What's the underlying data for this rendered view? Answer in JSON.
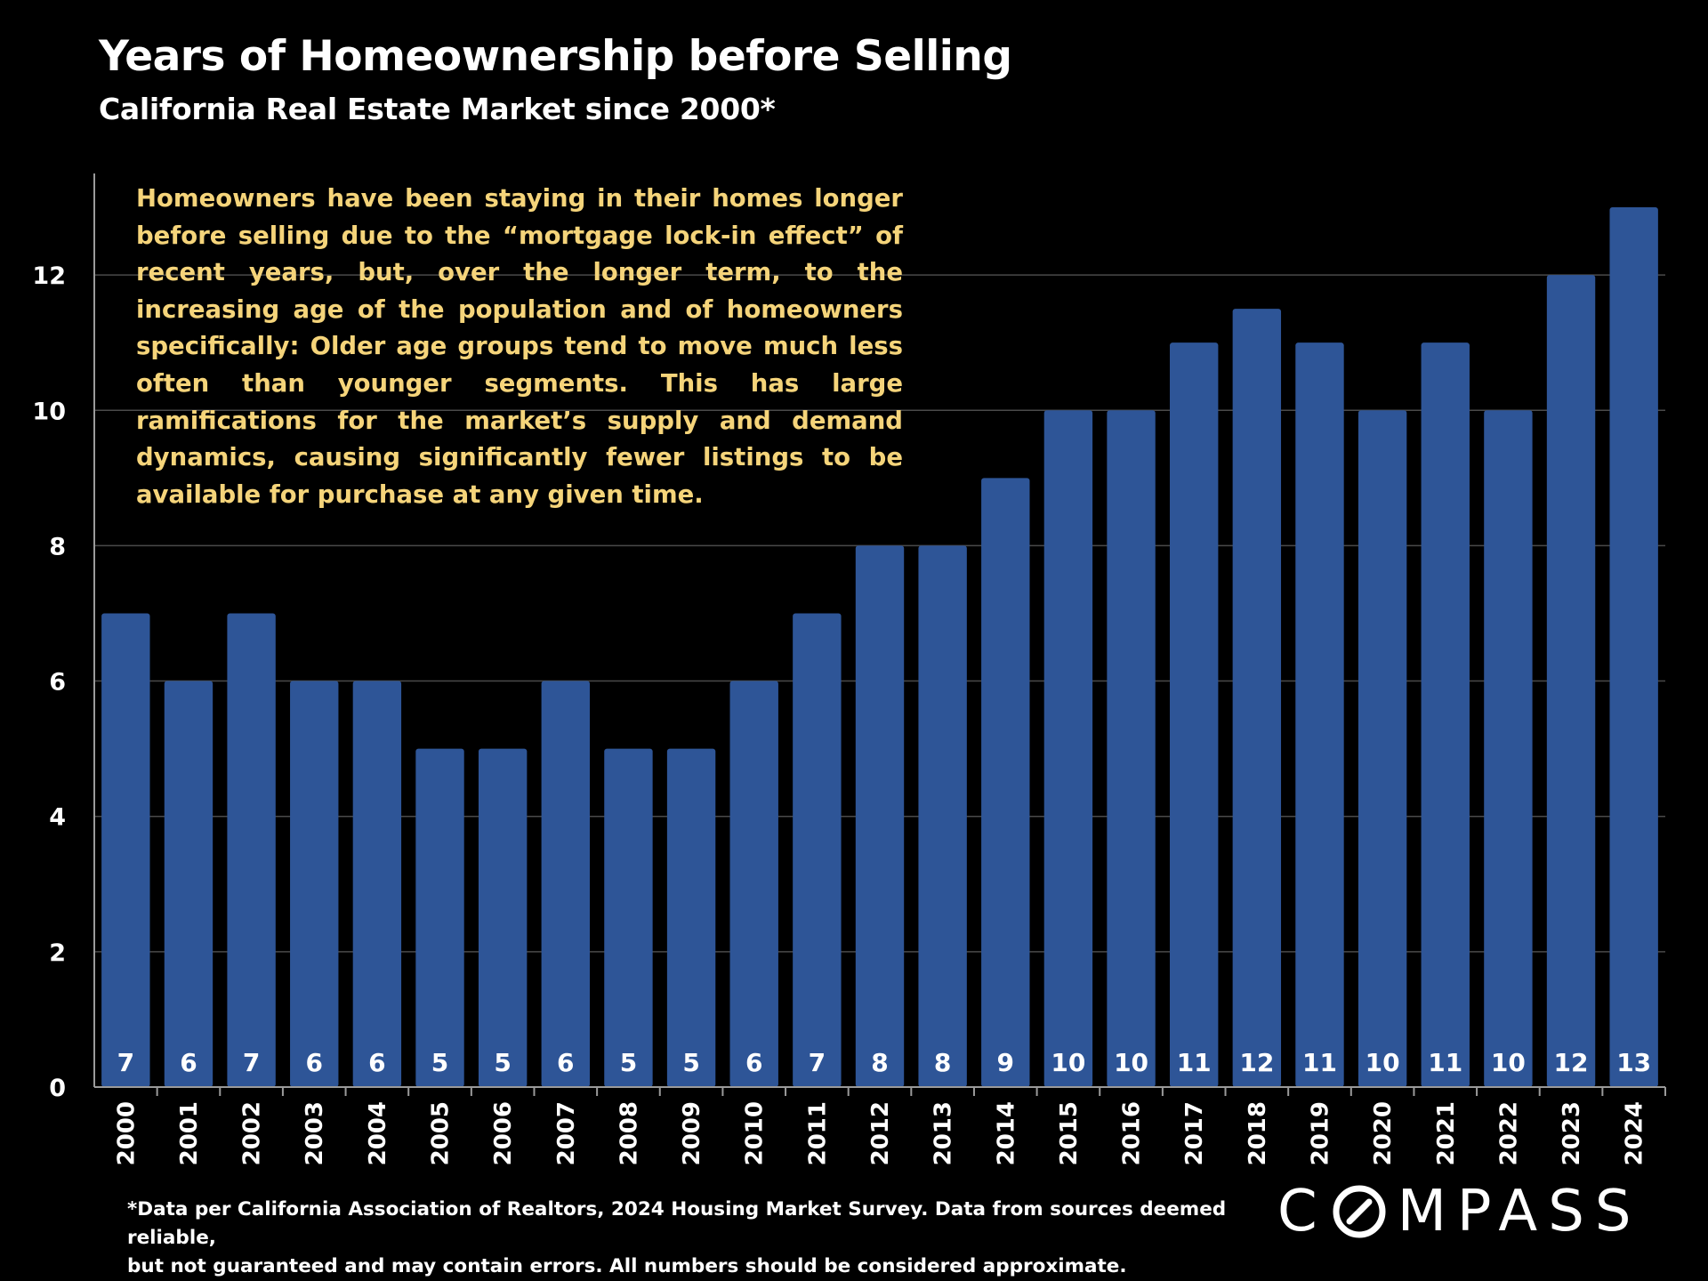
{
  "header": {
    "title": "Years of Homeownership before Selling",
    "subtitle": "California Real Estate Market since 2000*"
  },
  "annotation": "Homeowners have been staying in their homes longer before selling due to the “mortgage lock-in effect” of recent years, but, over the longer term, to the increasing age of the population and of homeowners specifically:  Older age groups tend to move much less often than younger segments. This has large ramifications for the market’s supply and demand dynamics, causing significantly fewer listings to be available for purchase at any given time.",
  "footnote": {
    "line1": "*Data per California Association of Realtors, 2024 Housing Market Survey. Data from sources deemed reliable,",
    "line2": "but not guaranteed and may contain errors. All numbers should be considered approximate."
  },
  "logo": {
    "prefix": "C",
    "suffix": "MPASS",
    "icon": "compass-o-icon"
  },
  "colors": {
    "bar": "#2e5597",
    "annotation": "#f5d47a",
    "grid": "#4a4a4a",
    "background": "#000000"
  },
  "chart_data": {
    "type": "bar",
    "title": "Years of Homeownership before Selling",
    "xlabel": "",
    "ylabel": "",
    "categories": [
      "2000",
      "2001",
      "2002",
      "2003",
      "2004",
      "2005",
      "2006",
      "2007",
      "2008",
      "2009",
      "2010",
      "2011",
      "2012",
      "2013",
      "2014",
      "2015",
      "2016",
      "2017",
      "2018",
      "2019",
      "2020",
      "2021",
      "2022",
      "2023",
      "2024"
    ],
    "values": [
      7,
      6,
      7,
      6,
      6,
      5,
      5,
      6,
      5,
      5,
      6,
      7,
      8,
      8,
      9,
      10,
      10,
      11,
      11.5,
      11,
      10,
      11,
      10,
      12,
      13
    ],
    "data_labels": [
      "7",
      "6",
      "7",
      "6",
      "6",
      "5",
      "5",
      "6",
      "5",
      "5",
      "6",
      "7",
      "8",
      "8",
      "9",
      "10",
      "10",
      "11",
      "12",
      "11",
      "10",
      "11",
      "10",
      "12",
      "13"
    ],
    "yticks": [
      0,
      2,
      4,
      6,
      8,
      10,
      12
    ],
    "ylim": [
      0,
      13.5
    ],
    "grid": true
  }
}
